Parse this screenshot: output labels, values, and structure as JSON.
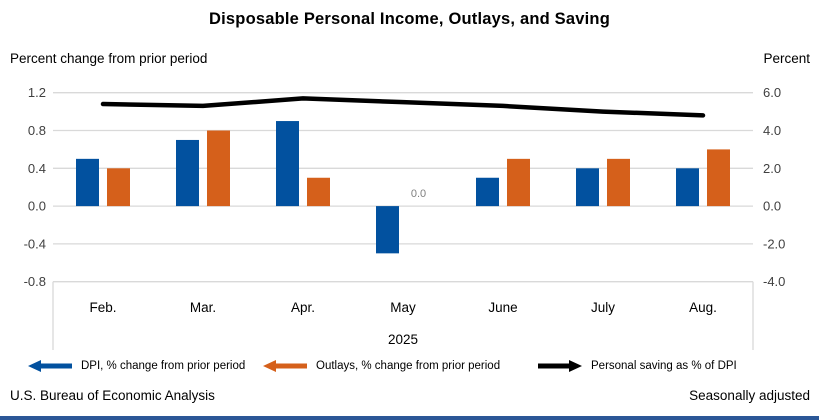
{
  "title": "Disposable Personal Income, Outlays, and Saving",
  "left_axis_caption": "Percent change from prior period",
  "right_axis_caption": "Percent",
  "footer": {
    "source": "U.S. Bureau of Economic Analysis",
    "note": "Seasonally adjusted"
  },
  "colors": {
    "dpi_blue": "#02519f",
    "outlays_orange": "#d5601b",
    "saving_black": "#000000",
    "gridline": "#d9d9d9",
    "tick_text": "#404040",
    "data_label_gray": "#7f7f7f",
    "bottom_strip_blue": "#2b5797"
  },
  "legend": {
    "items": [
      {
        "label": "DPI, % change from prior period",
        "color": "#02519f",
        "arrow": "left"
      },
      {
        "label": "Outlays, % change from prior period",
        "color": "#d5601b",
        "arrow": "left"
      },
      {
        "label": "Personal saving as % of DPI",
        "color": "#000000",
        "arrow": "right"
      }
    ]
  },
  "chart_data": {
    "type": "bar",
    "subtype": "grouped bars with overlaid line on secondary axis",
    "categories": [
      "Feb.",
      "Mar.",
      "Apr.",
      "May",
      "June",
      "July",
      "Aug."
    ],
    "year_label": "2025",
    "series": [
      {
        "name": "DPI, % change from prior period",
        "kind": "bar",
        "axis": "left",
        "color": "#02519f",
        "values": [
          0.5,
          0.7,
          0.9,
          -0.5,
          0.3,
          0.4,
          0.4
        ]
      },
      {
        "name": "Outlays, % change from prior period",
        "kind": "bar",
        "axis": "left",
        "color": "#d5601b",
        "values": [
          0.4,
          0.8,
          0.3,
          0.0,
          0.5,
          0.5,
          0.6
        ]
      },
      {
        "name": "Personal saving as % of DPI",
        "kind": "line",
        "axis": "right",
        "color": "#000000",
        "values": [
          5.4,
          5.3,
          5.7,
          5.5,
          5.3,
          5.0,
          4.8
        ]
      }
    ],
    "left_axis": {
      "label": "Percent change from prior period",
      "min": -0.8,
      "max": 1.2,
      "tick_labels": [
        "1.2",
        "0.8",
        "0.4",
        "0.0",
        "-0.4",
        "-0.8"
      ],
      "tick_values": [
        1.2,
        0.8,
        0.4,
        0.0,
        -0.4,
        -0.8
      ]
    },
    "right_axis": {
      "label": "Percent",
      "min": -4.0,
      "max": 6.0,
      "tick_labels": [
        "6.0",
        "4.0",
        "2.0",
        "0.0",
        "-2.0",
        "-4.0"
      ],
      "tick_values": [
        6.0,
        4.0,
        2.0,
        0.0,
        -2.0,
        -4.0
      ]
    },
    "data_labels": [
      {
        "series_index": 1,
        "category_index": 3,
        "text": "0.0"
      }
    ],
    "grid": true,
    "legend_position": "bottom"
  }
}
